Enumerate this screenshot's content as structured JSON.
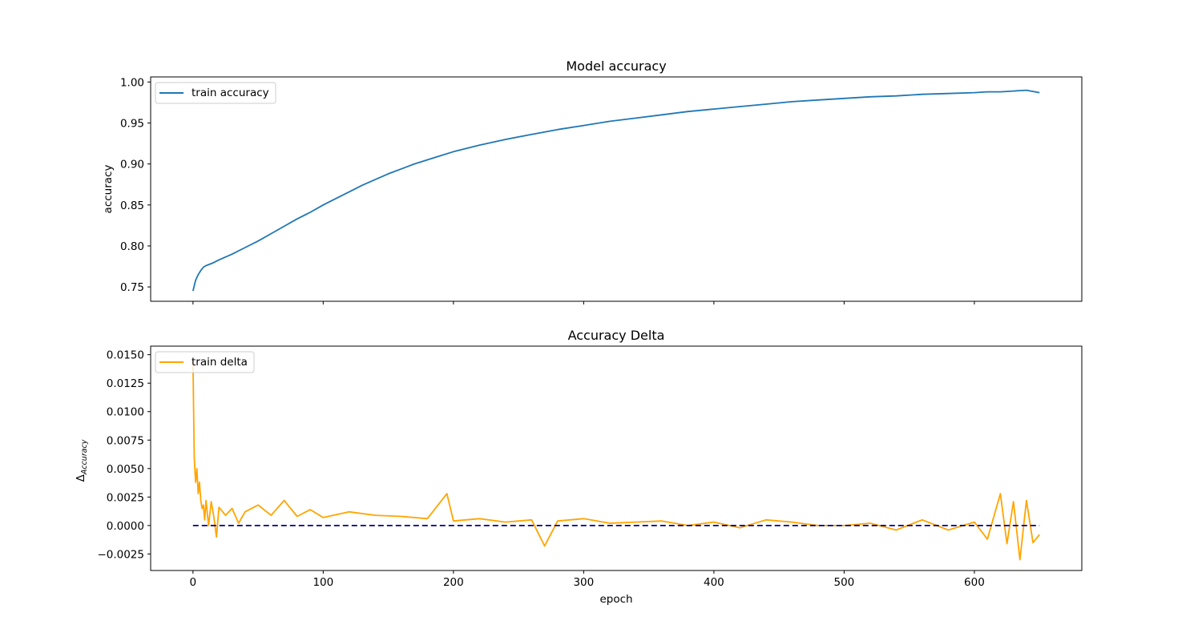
{
  "chart_data": [
    {
      "type": "line",
      "title": "Model accuracy",
      "xlabel": "",
      "ylabel": "accuracy",
      "xlim": [
        -32.5,
        682.5
      ],
      "ylim": [
        0.7325,
        1.0062
      ],
      "xticks": [
        0,
        100,
        200,
        300,
        400,
        500,
        600
      ],
      "xtick_labels_visible": false,
      "yticks": [
        0.75,
        0.8,
        0.85,
        0.9,
        0.95,
        1.0
      ],
      "ytick_labels": [
        "0.75",
        "0.80",
        "0.85",
        "0.90",
        "0.95",
        "1.00"
      ],
      "legend": "upper left",
      "grid": false,
      "series": [
        {
          "name": "train accuracy",
          "color": "#1f77b4",
          "x": [
            0,
            2,
            4,
            6,
            8,
            10,
            15,
            20,
            30,
            40,
            50,
            60,
            70,
            80,
            90,
            100,
            110,
            120,
            130,
            140,
            150,
            160,
            170,
            180,
            190,
            200,
            220,
            240,
            260,
            280,
            300,
            320,
            340,
            360,
            380,
            400,
            420,
            440,
            460,
            480,
            500,
            510,
            520,
            540,
            560,
            580,
            600,
            610,
            620,
            630,
            640,
            650
          ],
          "y": [
            0.745,
            0.758,
            0.765,
            0.77,
            0.774,
            0.776,
            0.779,
            0.783,
            0.79,
            0.798,
            0.806,
            0.815,
            0.824,
            0.833,
            0.841,
            0.85,
            0.858,
            0.866,
            0.874,
            0.881,
            0.888,
            0.894,
            0.9,
            0.905,
            0.91,
            0.915,
            0.923,
            0.93,
            0.936,
            0.942,
            0.947,
            0.952,
            0.956,
            0.96,
            0.964,
            0.967,
            0.97,
            0.973,
            0.976,
            0.978,
            0.98,
            0.981,
            0.982,
            0.983,
            0.985,
            0.986,
            0.987,
            0.988,
            0.988,
            0.989,
            0.99,
            0.987
          ]
        }
      ]
    },
    {
      "type": "line",
      "title": "Accuracy Delta",
      "xlabel": "epoch",
      "ylabel": "Δ",
      "ylabel_subscript": "Accuracy",
      "xlim": [
        -32.5,
        682.5
      ],
      "ylim": [
        -0.00395,
        0.01575
      ],
      "xticks": [
        0,
        100,
        200,
        300,
        400,
        500,
        600
      ],
      "xtick_labels": [
        "0",
        "100",
        "200",
        "300",
        "400",
        "500",
        "600"
      ],
      "yticks": [
        -0.0025,
        0.0,
        0.0025,
        0.005,
        0.0075,
        0.01,
        0.0125,
        0.015
      ],
      "ytick_labels": [
        "−0.0025",
        "0.0000",
        "0.0025",
        "0.0050",
        "0.0075",
        "0.0100",
        "0.0125",
        "0.0150"
      ],
      "legend": "upper left",
      "grid": false,
      "series": [
        {
          "name": "train delta",
          "color": "#ffa500",
          "x": [
            0,
            1,
            2,
            3,
            4,
            5,
            6,
            7,
            8,
            9,
            10,
            12,
            14,
            16,
            18,
            20,
            25,
            30,
            35,
            40,
            50,
            60,
            70,
            80,
            90,
            100,
            120,
            140,
            160,
            180,
            195,
            200,
            220,
            240,
            260,
            270,
            280,
            300,
            320,
            340,
            360,
            380,
            400,
            420,
            440,
            460,
            480,
            500,
            520,
            540,
            560,
            580,
            600,
            610,
            620,
            625,
            630,
            635,
            640,
            645,
            650
          ],
          "y": [
            0.0145,
            0.006,
            0.0038,
            0.005,
            0.0028,
            0.0038,
            0.0022,
            0.0015,
            0.0018,
            0.0005,
            0.0022,
            0.0,
            0.0021,
            0.0008,
            -0.001,
            0.0016,
            0.0009,
            0.0015,
            0.0002,
            0.0012,
            0.0018,
            0.0009,
            0.0022,
            0.0008,
            0.0014,
            0.0007,
            0.0012,
            0.0009,
            0.0008,
            0.0006,
            0.0028,
            0.0004,
            0.0006,
            0.0003,
            0.0005,
            -0.0018,
            0.0004,
            0.0006,
            0.0002,
            0.0003,
            0.0004,
            0.0,
            0.0003,
            -0.0002,
            0.0005,
            0.0003,
            0.0,
            0.0,
            0.0002,
            -0.0004,
            0.0005,
            -0.0004,
            0.0003,
            -0.0012,
            0.0028,
            -0.0016,
            0.0021,
            -0.003,
            0.0022,
            -0.0015,
            -0.0008
          ]
        },
        {
          "name": "",
          "color": "#00008b",
          "style": "dashed",
          "x": [
            0,
            650
          ],
          "y": [
            0.0,
            0.0
          ]
        }
      ]
    }
  ]
}
